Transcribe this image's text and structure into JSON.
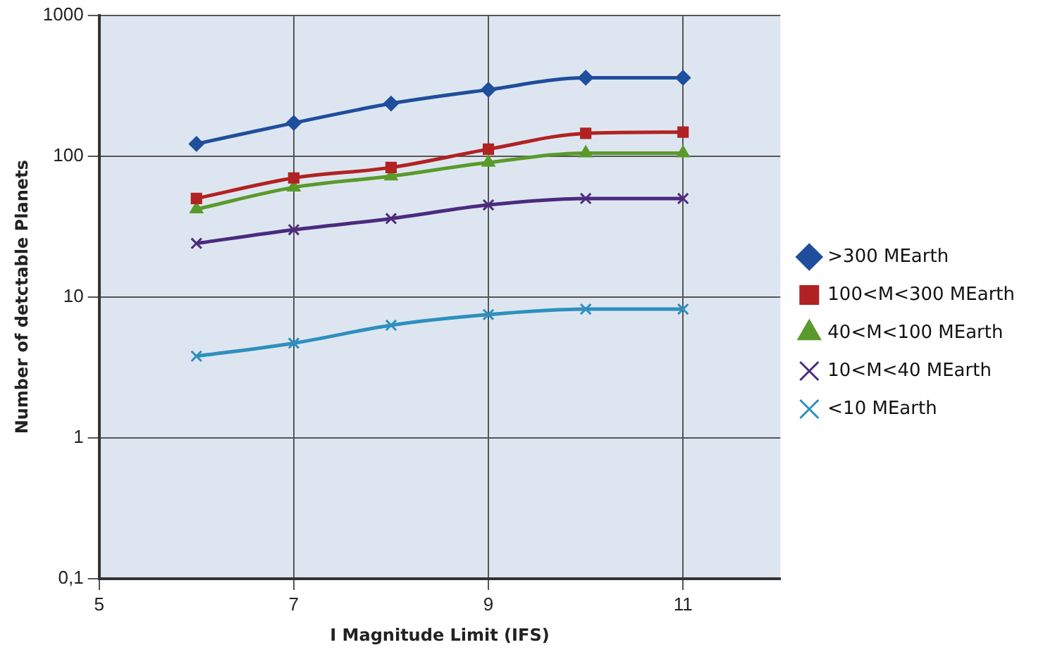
{
  "chart_data": {
    "type": "line",
    "xlabel": "I Magnitude Limit (IFS)",
    "ylabel": "Number of detctable Planets",
    "x": [
      6,
      7,
      8,
      9,
      10,
      11
    ],
    "series": [
      {
        "name": ">300 MEarth",
        "color": "#1f4e9c",
        "marker": "diamond",
        "values": [
          122,
          172,
          236,
          296,
          360,
          360
        ]
      },
      {
        "name": "100<M<300 MEarth",
        "color": "#b22222",
        "marker": "square",
        "values": [
          50,
          70,
          83,
          112,
          145,
          148
        ]
      },
      {
        "name": "40<M<100 MEarth",
        "color": "#5a9a2a",
        "marker": "triangle",
        "values": [
          42,
          60,
          72,
          90,
          105,
          105
        ]
      },
      {
        "name": "10<M<40 MEarth",
        "color": "#4b2a7f",
        "marker": "cross",
        "values": [
          24,
          30,
          36,
          45,
          50,
          50
        ]
      },
      {
        "name": "<10 MEarth",
        "color": "#2e8fbf",
        "marker": "cross",
        "values": [
          3.8,
          4.7,
          6.3,
          7.5,
          8.2,
          8.2
        ]
      }
    ],
    "xlim": [
      5,
      12
    ],
    "xticks": [
      5,
      7,
      9,
      11
    ],
    "ylim": [
      0.1,
      1000
    ],
    "yticks": [
      {
        "value": 0.1,
        "label": "0,1"
      },
      1,
      10,
      100,
      1000
    ],
    "log": "y",
    "grid": true,
    "legend": "right"
  }
}
